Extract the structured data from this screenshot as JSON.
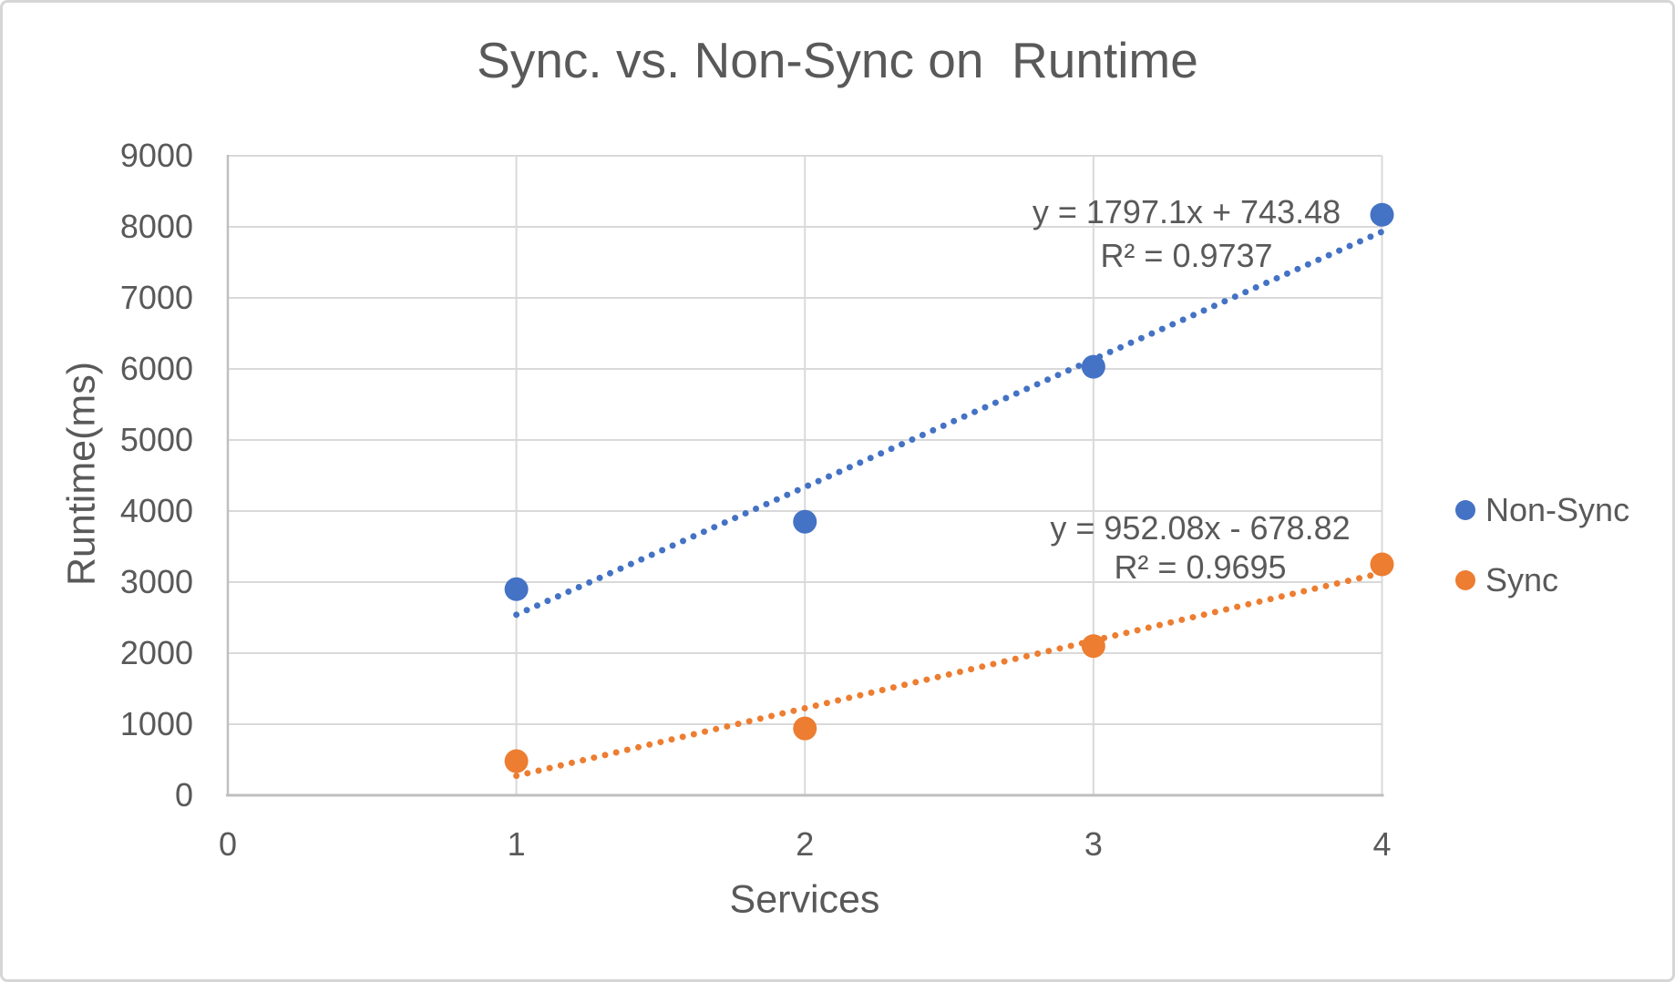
{
  "chart_data": {
    "type": "scatter",
    "title": "Sync. vs. Non-Sync on  Runtime",
    "xlabel": "Services",
    "ylabel": "Runtime(ms)",
    "xlim": [
      0,
      4
    ],
    "ylim": [
      0,
      9000
    ],
    "x_ticks": [
      0,
      1,
      2,
      3,
      4
    ],
    "y_ticks": [
      0,
      1000,
      2000,
      3000,
      4000,
      5000,
      6000,
      7000,
      8000,
      9000
    ],
    "grid": true,
    "legend_position": "right",
    "series": [
      {
        "name": "Non-Sync",
        "color": "#4472C4",
        "points": [
          [
            1,
            2900
          ],
          [
            2,
            3850
          ],
          [
            3,
            6030
          ],
          [
            4,
            8170
          ]
        ],
        "trendline": {
          "type": "linear-dotted",
          "slope": 1797.1,
          "intercept": 743.48,
          "x_start": 1,
          "x_end": 4,
          "equation_label": "y = 1797.1x + 743.48",
          "r2_label": "R² = 0.9737"
        }
      },
      {
        "name": "Sync",
        "color": "#ED7D31",
        "points": [
          [
            1,
            480
          ],
          [
            2,
            940
          ],
          [
            3,
            2100
          ],
          [
            4,
            3250
          ]
        ],
        "trendline": {
          "type": "linear-dotted",
          "slope": 952.08,
          "intercept": -678.82,
          "x_start": 1,
          "x_end": 4,
          "equation_label": "y = 952.08x - 678.82",
          "r2_label": "R² = 0.9695"
        }
      }
    ]
  },
  "colors": {
    "text": "#595959",
    "gridline": "#D9D9D9",
    "axis_line": "#BFBFBF",
    "non_sync": "#4472C4",
    "sync": "#ED7D31",
    "frame_border": "#D6D6D6",
    "background": "#FFFFFF"
  }
}
